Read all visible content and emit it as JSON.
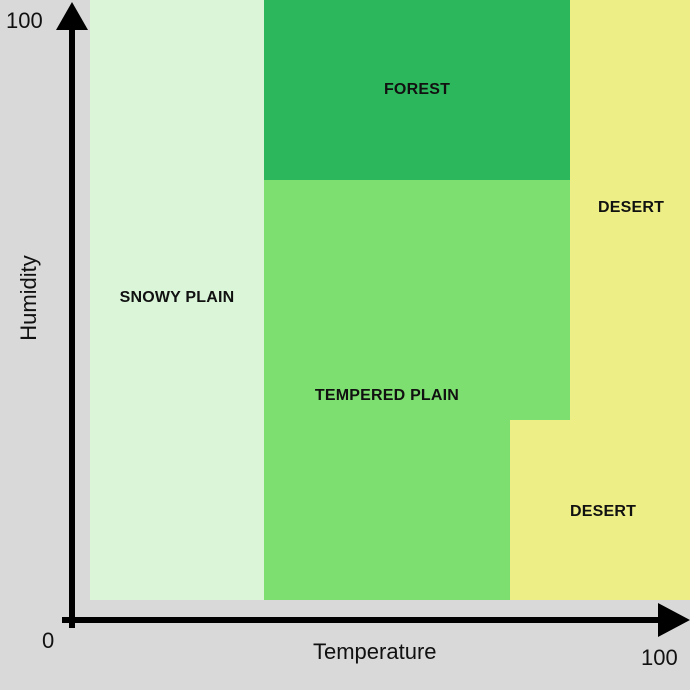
{
  "diagram": {
    "x_axis": {
      "label": "Temperature",
      "min_label": "0",
      "max_label": "100"
    },
    "y_axis": {
      "label": "Humidity",
      "max_label": "100"
    },
    "regions": [
      {
        "name": "SNOWY PLAIN",
        "color": "#daf5d8"
      },
      {
        "name": "FOREST",
        "color": "#2db75c"
      },
      {
        "name": "TEMPERED PLAIN",
        "color": "#7ddf6f"
      },
      {
        "name": "DESERT",
        "color": "#eeee86"
      },
      {
        "name": "DESERT",
        "color": "#eeee86"
      }
    ],
    "colors": {
      "background": "#d9d9d9",
      "axis": "#000000"
    }
  }
}
